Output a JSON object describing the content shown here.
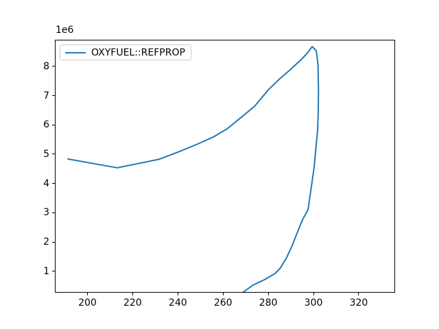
{
  "figure": {
    "background": "#ffffff"
  },
  "chart_data": {
    "type": "line",
    "title": "",
    "xlabel": "",
    "ylabel": "",
    "grid": false,
    "legend_position": "upper left",
    "y_offset_text": "1e6",
    "y_unit_multiplier": 1000000,
    "xlim": [
      185.6,
      336.1
    ],
    "ylim_e6": [
      0.27,
      8.91
    ],
    "x_ticks": [
      200,
      220,
      240,
      260,
      280,
      300,
      320
    ],
    "y_ticks_e6": [
      1,
      2,
      3,
      4,
      5,
      6,
      7,
      8
    ],
    "series": [
      {
        "name": "OXYFUEL::REFPROP",
        "color": "#1f77b4",
        "x": [
          191.1,
          212.9,
          231.4,
          239.9,
          247.8,
          255.4,
          261.5,
          267.5,
          273.6,
          279.7,
          284.5,
          289.7,
          293.9,
          296.9,
          299.1,
          300.9,
          301.7,
          301.9,
          301.8,
          301.5,
          300.9,
          300.0,
          298.5,
          297.3,
          294.8,
          292.7,
          290.3,
          287.8,
          285.1,
          282.7,
          278.1,
          272.9,
          268.1
        ],
        "y_e6": [
          4.86,
          4.56,
          4.85,
          5.1,
          5.35,
          5.61,
          5.89,
          6.27,
          6.66,
          7.22,
          7.58,
          7.93,
          8.23,
          8.47,
          8.7,
          8.56,
          8.09,
          7.22,
          6.52,
          5.82,
          5.35,
          4.58,
          3.78,
          3.13,
          2.78,
          2.38,
          1.91,
          1.49,
          1.14,
          0.95,
          0.74,
          0.55,
          0.28
        ]
      }
    ]
  }
}
